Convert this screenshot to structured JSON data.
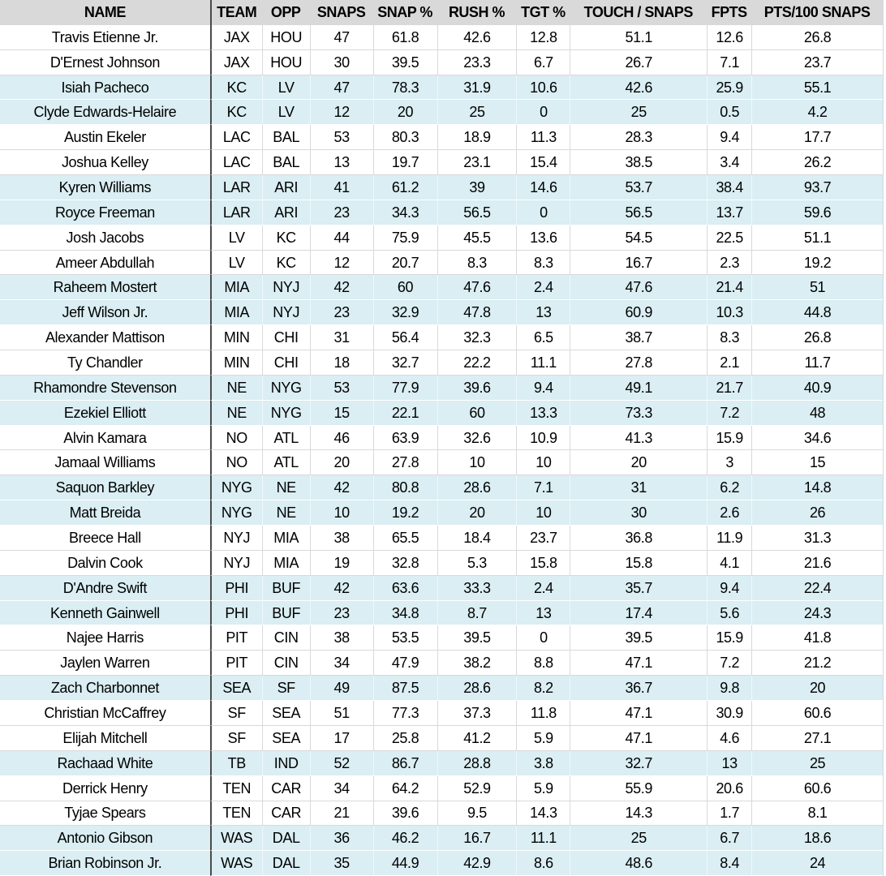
{
  "chart_data": {
    "type": "table",
    "columns": [
      "NAME",
      "TEAM",
      "OPP",
      "SNAPS",
      "SNAP %",
      "RUSH %",
      "TGT %",
      "TOUCH / SNAPS",
      "FPTS",
      "PTS/100 SNAPS"
    ],
    "column_keys": [
      "name",
      "team",
      "opp",
      "snaps",
      "snap_pct",
      "rush_pct",
      "tgt_pct",
      "touch_per_snaps",
      "fpts",
      "pts_per_100_snaps"
    ],
    "rows": [
      [
        "Travis Etienne Jr.",
        "JAX",
        "HOU",
        "47",
        "61.8",
        "42.6",
        "12.8",
        "51.1",
        "12.6",
        "26.8"
      ],
      [
        "D'Ernest Johnson",
        "JAX",
        "HOU",
        "30",
        "39.5",
        "23.3",
        "6.7",
        "26.7",
        "7.1",
        "23.7"
      ],
      [
        "Isiah Pacheco",
        "KC",
        "LV",
        "47",
        "78.3",
        "31.9",
        "10.6",
        "42.6",
        "25.9",
        "55.1"
      ],
      [
        "Clyde Edwards-Helaire",
        "KC",
        "LV",
        "12",
        "20",
        "25",
        "0",
        "25",
        "0.5",
        "4.2"
      ],
      [
        "Austin Ekeler",
        "LAC",
        "BAL",
        "53",
        "80.3",
        "18.9",
        "11.3",
        "28.3",
        "9.4",
        "17.7"
      ],
      [
        "Joshua Kelley",
        "LAC",
        "BAL",
        "13",
        "19.7",
        "23.1",
        "15.4",
        "38.5",
        "3.4",
        "26.2"
      ],
      [
        "Kyren Williams",
        "LAR",
        "ARI",
        "41",
        "61.2",
        "39",
        "14.6",
        "53.7",
        "38.4",
        "93.7"
      ],
      [
        "Royce Freeman",
        "LAR",
        "ARI",
        "23",
        "34.3",
        "56.5",
        "0",
        "56.5",
        "13.7",
        "59.6"
      ],
      [
        "Josh Jacobs",
        "LV",
        "KC",
        "44",
        "75.9",
        "45.5",
        "13.6",
        "54.5",
        "22.5",
        "51.1"
      ],
      [
        "Ameer Abdullah",
        "LV",
        "KC",
        "12",
        "20.7",
        "8.3",
        "8.3",
        "16.7",
        "2.3",
        "19.2"
      ],
      [
        "Raheem Mostert",
        "MIA",
        "NYJ",
        "42",
        "60",
        "47.6",
        "2.4",
        "47.6",
        "21.4",
        "51"
      ],
      [
        "Jeff Wilson Jr.",
        "MIA",
        "NYJ",
        "23",
        "32.9",
        "47.8",
        "13",
        "60.9",
        "10.3",
        "44.8"
      ],
      [
        "Alexander Mattison",
        "MIN",
        "CHI",
        "31",
        "56.4",
        "32.3",
        "6.5",
        "38.7",
        "8.3",
        "26.8"
      ],
      [
        "Ty Chandler",
        "MIN",
        "CHI",
        "18",
        "32.7",
        "22.2",
        "11.1",
        "27.8",
        "2.1",
        "11.7"
      ],
      [
        "Rhamondre Stevenson",
        "NE",
        "NYG",
        "53",
        "77.9",
        "39.6",
        "9.4",
        "49.1",
        "21.7",
        "40.9"
      ],
      [
        "Ezekiel Elliott",
        "NE",
        "NYG",
        "15",
        "22.1",
        "60",
        "13.3",
        "73.3",
        "7.2",
        "48"
      ],
      [
        "Alvin Kamara",
        "NO",
        "ATL",
        "46",
        "63.9",
        "32.6",
        "10.9",
        "41.3",
        "15.9",
        "34.6"
      ],
      [
        "Jamaal Williams",
        "NO",
        "ATL",
        "20",
        "27.8",
        "10",
        "10",
        "20",
        "3",
        "15"
      ],
      [
        "Saquon Barkley",
        "NYG",
        "NE",
        "42",
        "80.8",
        "28.6",
        "7.1",
        "31",
        "6.2",
        "14.8"
      ],
      [
        "Matt Breida",
        "NYG",
        "NE",
        "10",
        "19.2",
        "20",
        "10",
        "30",
        "2.6",
        "26"
      ],
      [
        "Breece Hall",
        "NYJ",
        "MIA",
        "38",
        "65.5",
        "18.4",
        "23.7",
        "36.8",
        "11.9",
        "31.3"
      ],
      [
        "Dalvin Cook",
        "NYJ",
        "MIA",
        "19",
        "32.8",
        "5.3",
        "15.8",
        "15.8",
        "4.1",
        "21.6"
      ],
      [
        "D'Andre Swift",
        "PHI",
        "BUF",
        "42",
        "63.6",
        "33.3",
        "2.4",
        "35.7",
        "9.4",
        "22.4"
      ],
      [
        "Kenneth Gainwell",
        "PHI",
        "BUF",
        "23",
        "34.8",
        "8.7",
        "13",
        "17.4",
        "5.6",
        "24.3"
      ],
      [
        "Najee Harris",
        "PIT",
        "CIN",
        "38",
        "53.5",
        "39.5",
        "0",
        "39.5",
        "15.9",
        "41.8"
      ],
      [
        "Jaylen Warren",
        "PIT",
        "CIN",
        "34",
        "47.9",
        "38.2",
        "8.8",
        "47.1",
        "7.2",
        "21.2"
      ],
      [
        "Zach Charbonnet",
        "SEA",
        "SF",
        "49",
        "87.5",
        "28.6",
        "8.2",
        "36.7",
        "9.8",
        "20"
      ],
      [
        "Christian McCaffrey",
        "SF",
        "SEA",
        "51",
        "77.3",
        "37.3",
        "11.8",
        "47.1",
        "30.9",
        "60.6"
      ],
      [
        "Elijah Mitchell",
        "SF",
        "SEA",
        "17",
        "25.8",
        "41.2",
        "5.9",
        "47.1",
        "4.6",
        "27.1"
      ],
      [
        "Rachaad White",
        "TB",
        "IND",
        "52",
        "86.7",
        "28.8",
        "3.8",
        "32.7",
        "13",
        "25"
      ],
      [
        "Derrick Henry",
        "TEN",
        "CAR",
        "34",
        "64.2",
        "52.9",
        "5.9",
        "55.9",
        "20.6",
        "60.6"
      ],
      [
        "Tyjae Spears",
        "TEN",
        "CAR",
        "21",
        "39.6",
        "9.5",
        "14.3",
        "14.3",
        "1.7",
        "8.1"
      ],
      [
        "Antonio Gibson",
        "WAS",
        "DAL",
        "36",
        "46.2",
        "16.7",
        "11.1",
        "25",
        "6.7",
        "18.6"
      ],
      [
        "Brian Robinson Jr.",
        "WAS",
        "DAL",
        "35",
        "44.9",
        "42.9",
        "8.6",
        "48.6",
        "8.4",
        "24"
      ]
    ],
    "row_shades": [
      "white",
      "white",
      "blue",
      "blue",
      "white",
      "white",
      "blue",
      "blue",
      "white",
      "white",
      "blue",
      "blue",
      "white",
      "white",
      "blue",
      "blue",
      "white",
      "white",
      "blue",
      "blue",
      "white",
      "white",
      "blue",
      "blue",
      "white",
      "white",
      "blue",
      "white",
      "white",
      "blue",
      "white",
      "white",
      "blue",
      "blue"
    ],
    "layout_hints": {
      "grid": "light gridlines between cells; dark vertical divider after NAME column",
      "shading": "rows shaded in pairs per team, alternating white and pale blue"
    }
  },
  "colors": {
    "header_bg": "#d9d9d9",
    "row_white": "#ffffff",
    "row_blue": "#daeef3",
    "grid_on_white": "#d9d9d9",
    "grid_on_blue": "#eef8fb",
    "name_divider": "#4a4a4a",
    "text": "#000000"
  }
}
